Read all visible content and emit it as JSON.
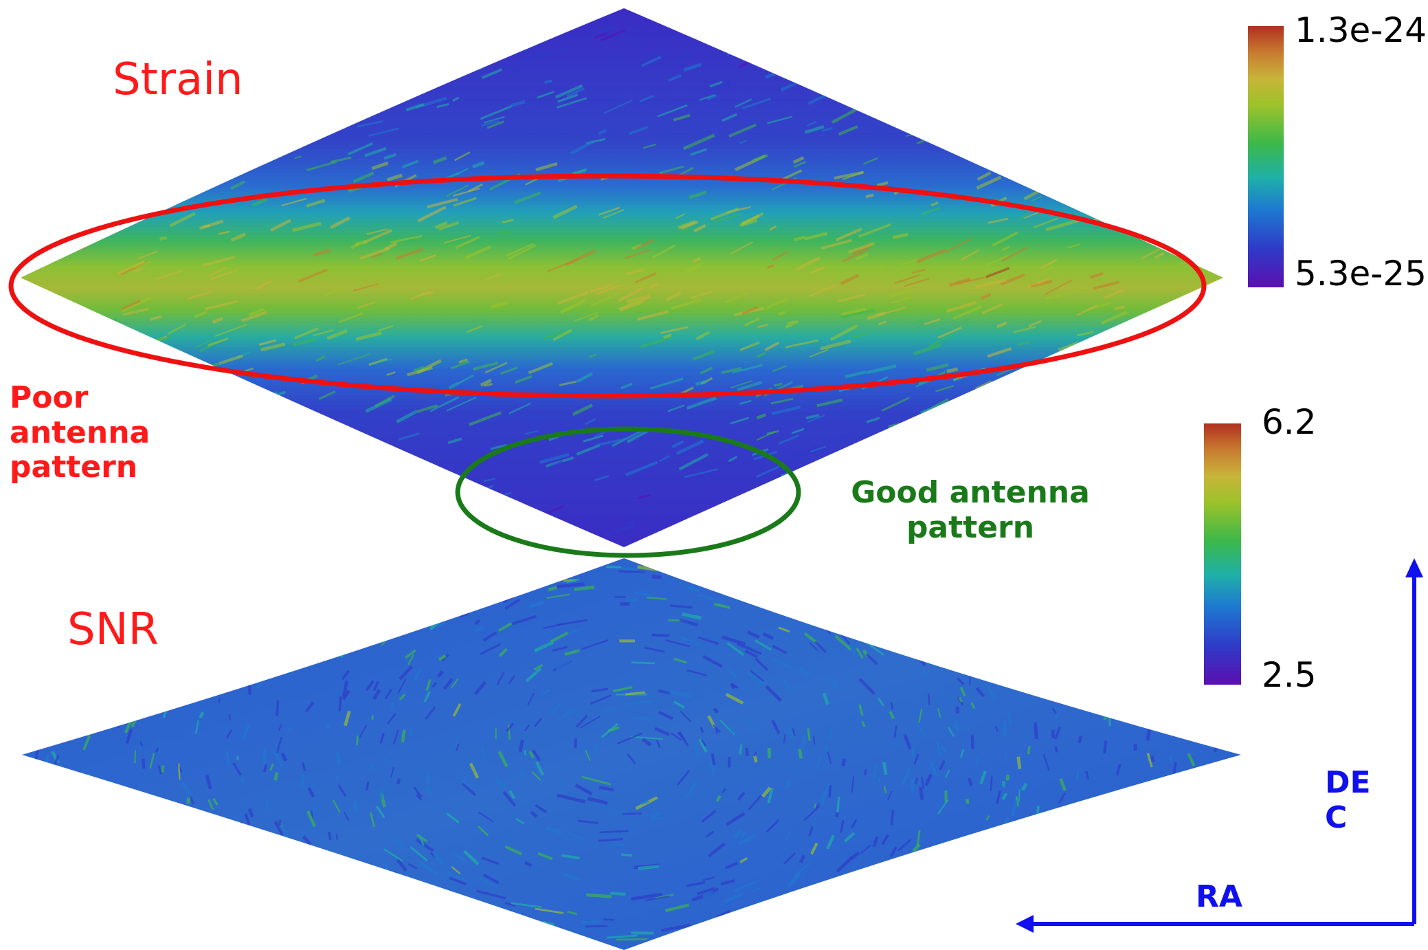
{
  "strain_map": {
    "title": "Strain",
    "colorbar": {
      "max_label": "1.3e-24",
      "min_label": "5.3e-25"
    }
  },
  "snr_map": {
    "title": "SNR",
    "colorbar": {
      "max_label": "6.2",
      "min_label": "2.5"
    }
  },
  "annotations": {
    "poor": "Poor\nantenna\npattern",
    "good": "Good antenna\npattern",
    "poor_color": "#ff1a1a",
    "good_color": "#1a7a1a"
  },
  "axes": {
    "ra_label": "RA",
    "dec_label": "DE\nC",
    "color": "#1010ee"
  },
  "colormap": [
    "#5b0fb0",
    "#2e3bc8",
    "#1e7ad0",
    "#1fb0a8",
    "#3cb84a",
    "#9ec22a",
    "#c8b43a",
    "#c87a30",
    "#b03020"
  ]
}
